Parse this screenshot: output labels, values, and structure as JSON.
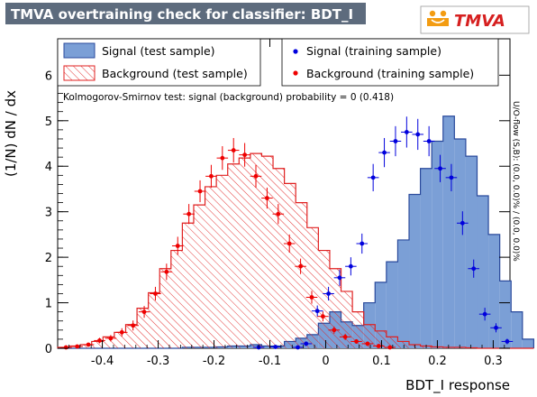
{
  "header": {
    "title": "TMVA overtraining check for classifier: BDT_I",
    "logo_text": "TMVA",
    "accent_color": "#f39c12",
    "title_bar_color": "#5d6b7d"
  },
  "chart_data": {
    "type": "histogram",
    "title": "TMVA overtraining check for classifier: BDT_I",
    "xlabel": "BDT_I response",
    "ylabel": "(1/N) dN / dx",
    "xlim": [
      -0.48,
      0.33
    ],
    "ylim": [
      0,
      6.8
    ],
    "x_ticks": [
      "-0.4",
      "-0.3",
      "-0.2",
      "-0.1",
      "0",
      "0.1",
      "0.2",
      "0.3"
    ],
    "y_ticks": [
      "0",
      "1",
      "2",
      "3",
      "4",
      "5",
      "6"
    ],
    "bin_edges_start": -0.48,
    "bin_width": 0.0203,
    "legend": {
      "signal_test": "Signal (test sample)",
      "background_test": "Background (test sample)",
      "signal_train": "Signal (training sample)",
      "background_train": "Background (training sample)"
    },
    "ks_text": "Kolmogorov-Smirnov test: signal (background) probability =     0 (0.418)",
    "side_text": "U/O-flow (S,B): (0.0, 0.0)% / (0.0, 0.0)%",
    "colors": {
      "signal_fill": "#7b9fd6",
      "signal_line": "#2a4a9c",
      "background_line": "#e02020",
      "signal_marker": "#0000dd",
      "background_marker": "#ee0000"
    },
    "series": [
      {
        "name": "Signal (test sample)",
        "values": [
          0,
          0,
          0,
          0,
          0,
          0,
          0,
          0,
          0,
          0,
          0,
          0.02,
          0.02,
          0.02,
          0.03,
          0.05,
          0.05,
          0.08,
          0.05,
          0.05,
          0.15,
          0.22,
          0.3,
          0.55,
          0.8,
          0.58,
          0.5,
          1.0,
          1.45,
          1.9,
          2.38,
          3.38,
          3.95,
          4.55,
          5.1,
          4.6,
          4.22,
          3.35,
          2.5,
          1.48,
          0.8,
          0.2
        ]
      },
      {
        "name": "Background (test sample)",
        "values": [
          0.02,
          0.05,
          0.08,
          0.15,
          0.25,
          0.35,
          0.52,
          0.88,
          1.22,
          1.75,
          2.15,
          2.75,
          3.15,
          3.55,
          3.8,
          4.05,
          4.18,
          4.28,
          4.22,
          3.95,
          3.62,
          3.2,
          2.65,
          2.15,
          1.75,
          1.25,
          0.8,
          0.52,
          0.38,
          0.25,
          0.15,
          0.08,
          0.05,
          0.03,
          0.02,
          0.02,
          0.01,
          0,
          0,
          0,
          0,
          0
        ]
      },
      {
        "name": "Signal (training sample)",
        "points": [
          [
            -0.12,
            0.02
          ],
          [
            -0.09,
            0.03
          ],
          [
            -0.05,
            0.02
          ],
          [
            -0.035,
            0.1
          ],
          [
            -0.015,
            0.82
          ],
          [
            0.005,
            1.2
          ],
          [
            0.025,
            1.55
          ],
          [
            0.045,
            1.8
          ],
          [
            0.065,
            2.3
          ],
          [
            0.085,
            3.75
          ],
          [
            0.105,
            4.3
          ],
          [
            0.125,
            4.55
          ],
          [
            0.145,
            4.75
          ],
          [
            0.165,
            4.7
          ],
          [
            0.185,
            4.55
          ],
          [
            0.205,
            3.95
          ],
          [
            0.225,
            3.75
          ],
          [
            0.245,
            2.75
          ],
          [
            0.265,
            1.75
          ],
          [
            0.285,
            0.75
          ],
          [
            0.305,
            0.45
          ],
          [
            0.325,
            0.15
          ]
        ],
        "errors": [
          0.02,
          0.02,
          0.02,
          0.05,
          0.12,
          0.15,
          0.18,
          0.2,
          0.22,
          0.3,
          0.32,
          0.33,
          0.34,
          0.34,
          0.33,
          0.3,
          0.3,
          0.26,
          0.2,
          0.14,
          0.1,
          0.06
        ]
      },
      {
        "name": "Background (training sample)",
        "points": [
          [
            -0.465,
            0.02
          ],
          [
            -0.445,
            0.04
          ],
          [
            -0.425,
            0.08
          ],
          [
            -0.405,
            0.17
          ],
          [
            -0.385,
            0.22
          ],
          [
            -0.365,
            0.35
          ],
          [
            -0.345,
            0.5
          ],
          [
            -0.325,
            0.8
          ],
          [
            -0.305,
            1.2
          ],
          [
            -0.285,
            1.68
          ],
          [
            -0.265,
            2.25
          ],
          [
            -0.245,
            2.95
          ],
          [
            -0.225,
            3.45
          ],
          [
            -0.205,
            3.78
          ],
          [
            -0.185,
            4.18
          ],
          [
            -0.165,
            4.35
          ],
          [
            -0.145,
            4.25
          ],
          [
            -0.125,
            3.78
          ],
          [
            -0.105,
            3.3
          ],
          [
            -0.085,
            2.95
          ],
          [
            -0.065,
            2.3
          ],
          [
            -0.045,
            1.8
          ],
          [
            -0.025,
            1.12
          ],
          [
            -0.005,
            0.7
          ],
          [
            0.015,
            0.4
          ],
          [
            0.035,
            0.25
          ],
          [
            0.055,
            0.15
          ],
          [
            0.075,
            0.1
          ],
          [
            0.095,
            0.05
          ],
          [
            0.115,
            0.02
          ]
        ],
        "errors": [
          0.02,
          0.03,
          0.04,
          0.06,
          0.07,
          0.09,
          0.11,
          0.13,
          0.15,
          0.18,
          0.2,
          0.22,
          0.24,
          0.25,
          0.26,
          0.27,
          0.26,
          0.25,
          0.23,
          0.22,
          0.2,
          0.17,
          0.14,
          0.11,
          0.08,
          0.07,
          0.05,
          0.04,
          0.03,
          0.02
        ]
      }
    ]
  }
}
